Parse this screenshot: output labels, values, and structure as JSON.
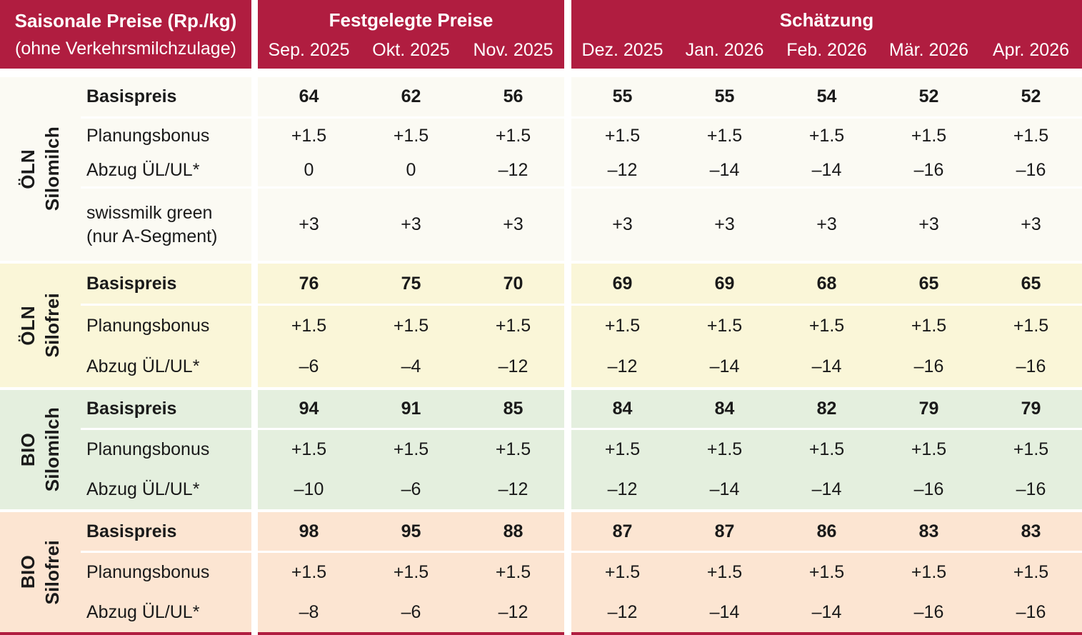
{
  "header": {
    "corner_title": "Saisonale Preise (Rp./kg)",
    "corner_subtitle": "(ohne Verkehrsmilchzulage)",
    "sections": [
      {
        "title": "Festgelegte Preise",
        "months": [
          "Sep. 2025",
          "Okt. 2025",
          "Nov. 2025"
        ]
      },
      {
        "title": "Schätzung",
        "months": [
          "Dez. 2025",
          "Jan. 2026",
          "Feb. 2026",
          "Mär. 2026",
          "Apr. 2026"
        ]
      }
    ]
  },
  "groups": [
    {
      "category": "ÖLN",
      "milk_type": "Silomilch",
      "bg": "#fbfaf3",
      "rows": [
        {
          "label": "Basispreis",
          "bold": true,
          "divider_after": true,
          "values": [
            "64",
            "62",
            "56",
            "55",
            "55",
            "54",
            "52",
            "52"
          ]
        },
        {
          "label": "Planungsbonus",
          "values": [
            "+1.5",
            "+1.5",
            "+1.5",
            "+1.5",
            "+1.5",
            "+1.5",
            "+1.5",
            "+1.5"
          ]
        },
        {
          "label": "Abzug ÜL/UL*",
          "divider_after": true,
          "values": [
            "0",
            "0",
            "–12",
            "–12",
            "–14",
            "–14",
            "–16",
            "–16"
          ]
        },
        {
          "label": "swissmilk green\n(nur A-Segment)",
          "values": [
            "+3",
            "+3",
            "+3",
            "+3",
            "+3",
            "+3",
            "+3",
            "+3"
          ]
        }
      ]
    },
    {
      "category": "ÖLN",
      "milk_type": "Silofrei",
      "bg": "#faf6d8",
      "rows": [
        {
          "label": "Basispreis",
          "bold": true,
          "divider_after": true,
          "values": [
            "76",
            "75",
            "70",
            "69",
            "69",
            "68",
            "65",
            "65"
          ]
        },
        {
          "label": "Planungsbonus",
          "values": [
            "+1.5",
            "+1.5",
            "+1.5",
            "+1.5",
            "+1.5",
            "+1.5",
            "+1.5",
            "+1.5"
          ]
        },
        {
          "label": "Abzug ÜL/UL*",
          "values": [
            "–6",
            "–4",
            "–12",
            "–12",
            "–14",
            "–14",
            "–16",
            "–16"
          ]
        }
      ]
    },
    {
      "category": "BIO",
      "milk_type": "Silomilch",
      "bg": "#e4efde",
      "rows": [
        {
          "label": "Basispreis",
          "bold": true,
          "divider_after": true,
          "values": [
            "94",
            "91",
            "85",
            "84",
            "84",
            "82",
            "79",
            "79"
          ]
        },
        {
          "label": "Planungsbonus",
          "values": [
            "+1.5",
            "+1.5",
            "+1.5",
            "+1.5",
            "+1.5",
            "+1.5",
            "+1.5",
            "+1.5"
          ]
        },
        {
          "label": "Abzug ÜL/UL*",
          "values": [
            "–10",
            "–6",
            "–12",
            "–12",
            "–14",
            "–14",
            "–16",
            "–16"
          ]
        }
      ]
    },
    {
      "category": "BIO",
      "milk_type": "Silofrei",
      "bg": "#fce5d2",
      "rows": [
        {
          "label": "Basispreis",
          "bold": true,
          "divider_after": true,
          "values": [
            "98",
            "95",
            "88",
            "87",
            "87",
            "86",
            "83",
            "83"
          ]
        },
        {
          "label": "Planungsbonus",
          "values": [
            "+1.5",
            "+1.5",
            "+1.5",
            "+1.5",
            "+1.5",
            "+1.5",
            "+1.5",
            "+1.5"
          ]
        },
        {
          "label": "Abzug ÜL/UL*",
          "values": [
            "–8",
            "–6",
            "–12",
            "–12",
            "–14",
            "–14",
            "–16",
            "–16"
          ]
        }
      ]
    }
  ],
  "colors": {
    "header_red": "#b01d40",
    "text": "#1a1a1a",
    "group_oeln_silomilch_bg": "#fbfaf3",
    "group_oeln_silofrei_bg": "#faf6d8",
    "group_bio_silomilch_bg": "#e4efde",
    "group_bio_silofrei_bg": "#fce5d2"
  }
}
